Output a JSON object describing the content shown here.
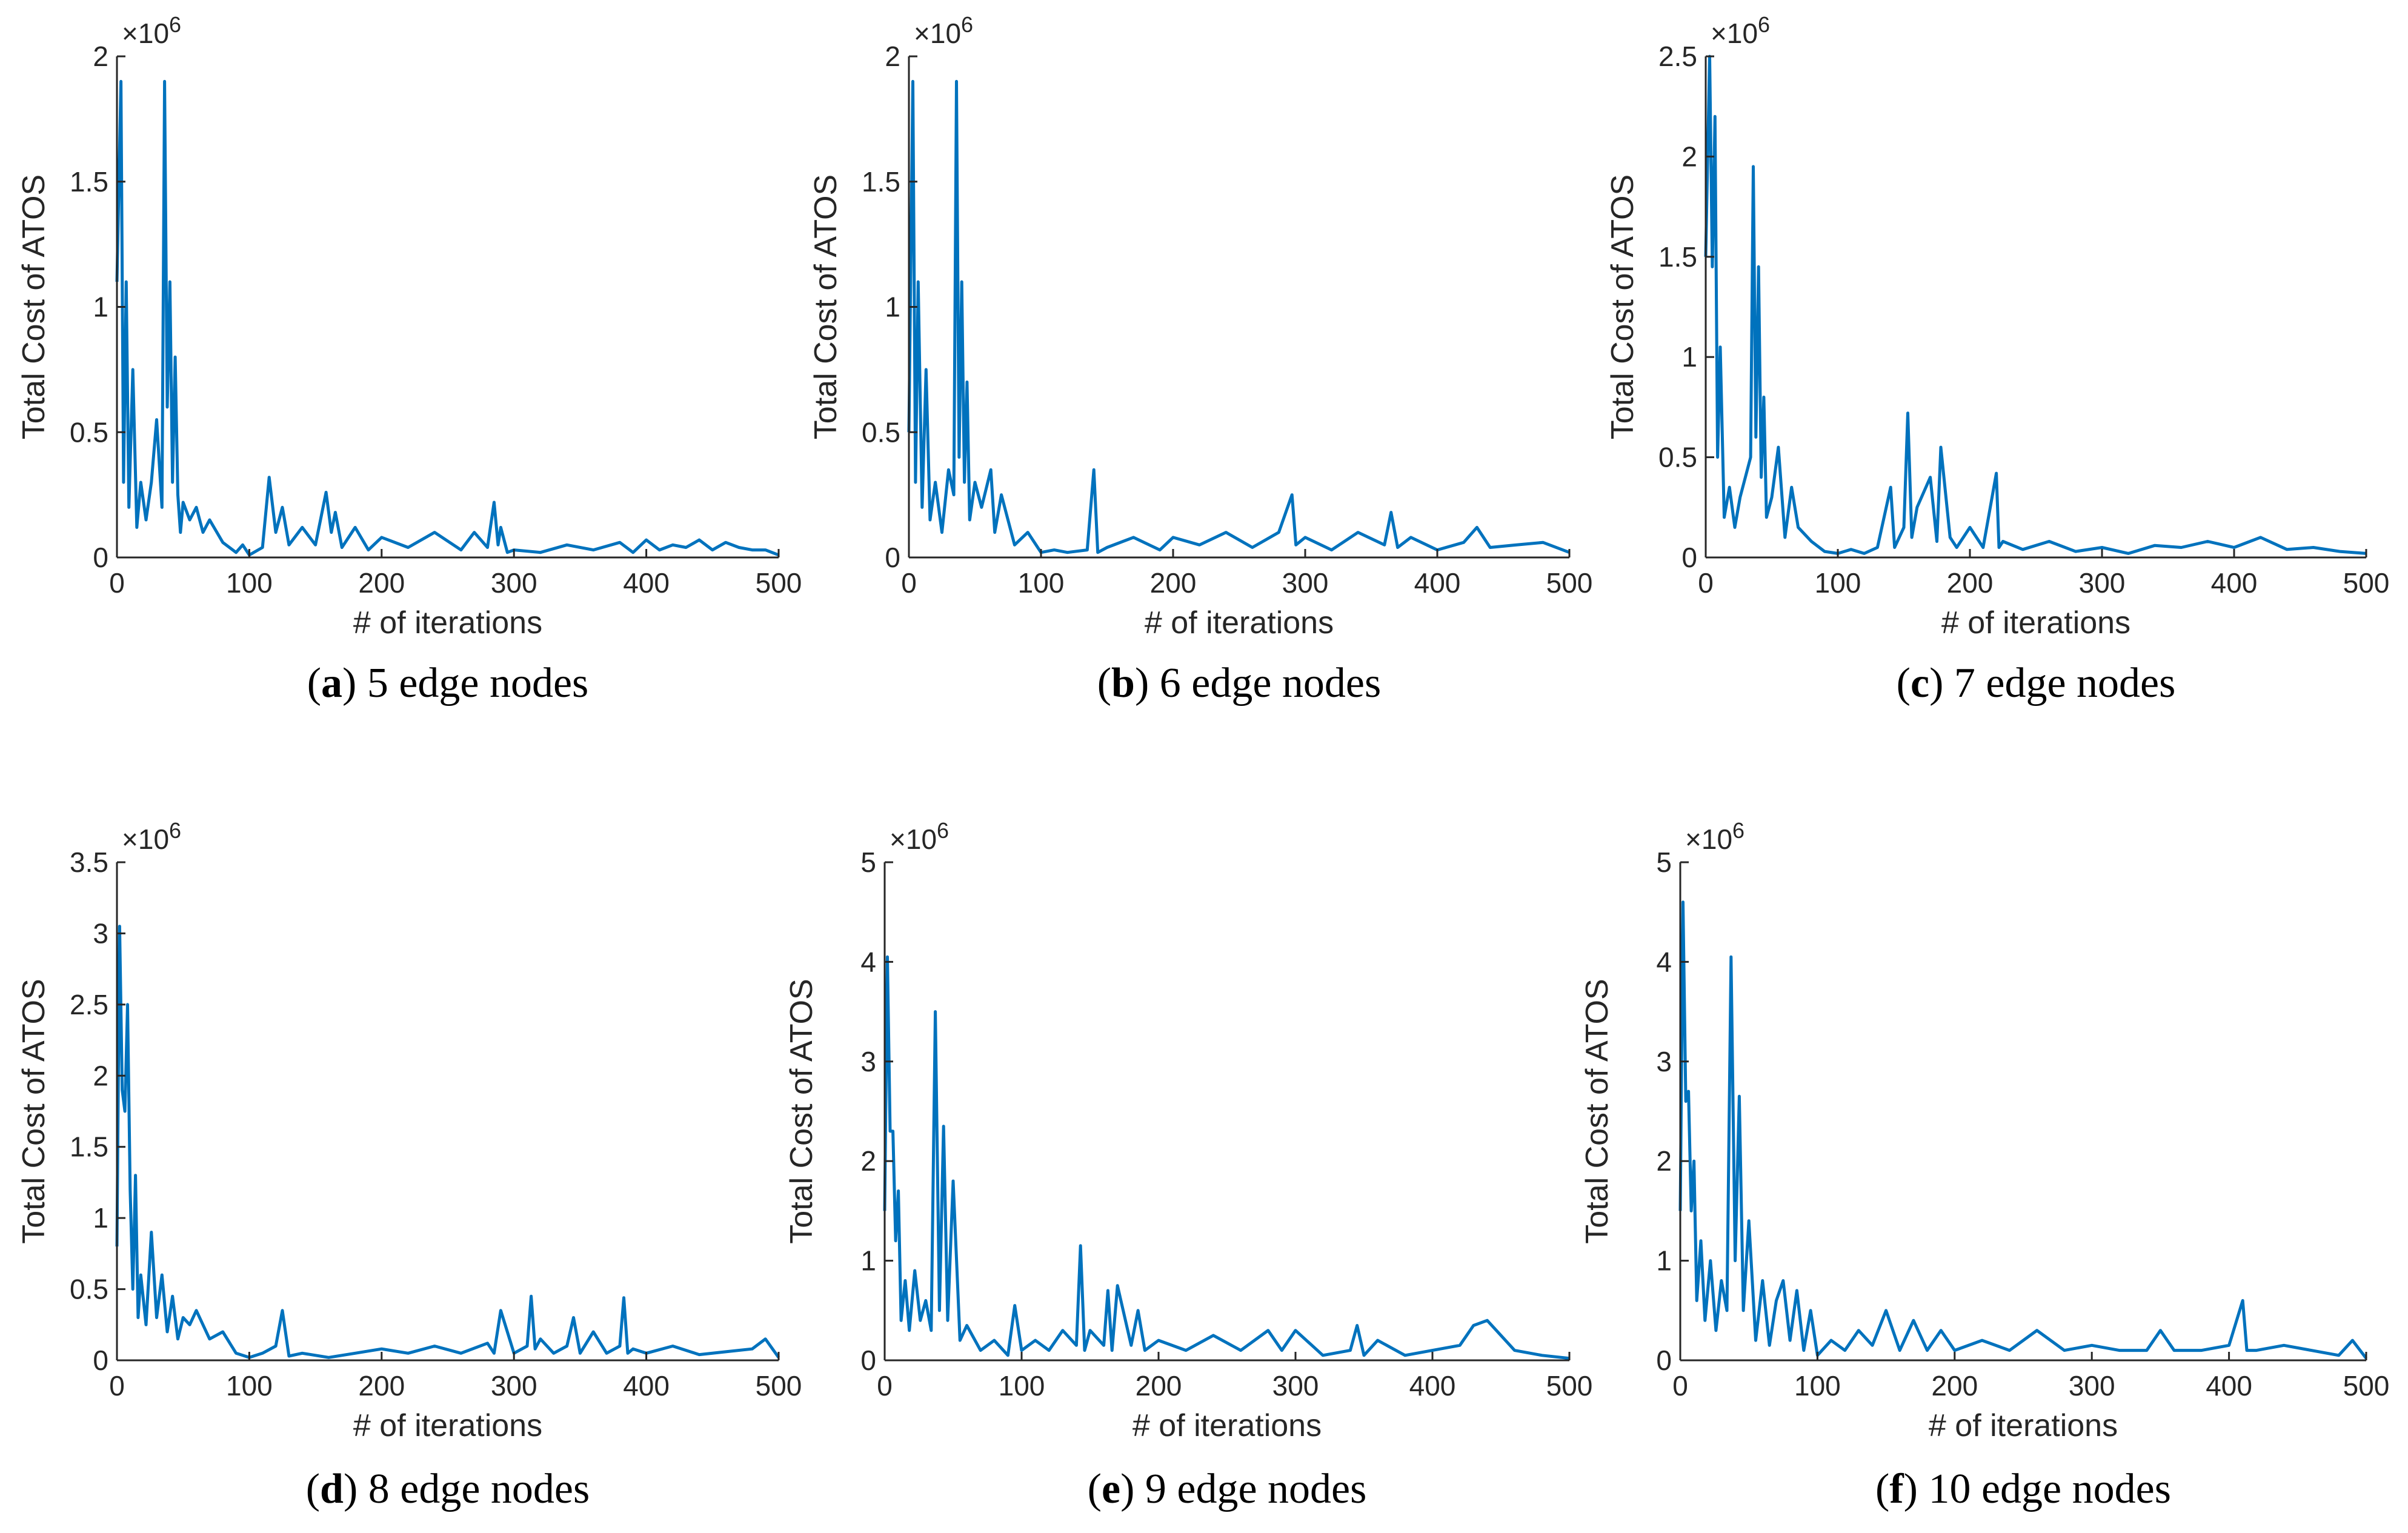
{
  "figure": {
    "series_color": "#0072BD",
    "x_axis_label": "# of iterations",
    "y_axis_label": "Total Cost of ATOS",
    "multiplier_label": "×10^6"
  },
  "chart_data": [
    {
      "type": "line",
      "caption": {
        "letter": "a",
        "text": " 5 edge nodes",
        "open": "(",
        "close": ")"
      },
      "xlabel": "# of iterations",
      "ylabel": "Total Cost of ATOS",
      "xlim": [
        0,
        500
      ],
      "ylim": [
        0,
        2
      ],
      "xticks": [
        0,
        100,
        200,
        300,
        400,
        500
      ],
      "yticks": [
        0,
        0.5,
        1,
        1.5,
        2
      ],
      "ytick_labels": [
        "0",
        "0.5",
        "1",
        "1.5",
        "2"
      ],
      "multiplier": "×10^6",
      "series": [
        {
          "name": "cost",
          "x": [
            0,
            3,
            5,
            7,
            9,
            12,
            15,
            18,
            22,
            26,
            30,
            34,
            36,
            38,
            40,
            42,
            44,
            46,
            48,
            50,
            55,
            60,
            65,
            70,
            80,
            90,
            95,
            100,
            110,
            115,
            120,
            125,
            130,
            140,
            150,
            158,
            162,
            165,
            170,
            180,
            190,
            200,
            220,
            240,
            260,
            270,
            280,
            285,
            288,
            290,
            295,
            300,
            320,
            340,
            360,
            380,
            390,
            400,
            410,
            420,
            430,
            440,
            450,
            460,
            470,
            480,
            490,
            500
          ],
          "y": [
            1.1,
            1.9,
            0.3,
            1.1,
            0.2,
            0.75,
            0.12,
            0.3,
            0.15,
            0.3,
            0.55,
            0.2,
            1.9,
            0.6,
            1.1,
            0.3,
            0.8,
            0.25,
            0.1,
            0.22,
            0.15,
            0.2,
            0.1,
            0.15,
            0.06,
            0.02,
            0.05,
            0.01,
            0.04,
            0.32,
            0.1,
            0.2,
            0.05,
            0.12,
            0.05,
            0.26,
            0.1,
            0.18,
            0.04,
            0.12,
            0.03,
            0.08,
            0.04,
            0.1,
            0.03,
            0.1,
            0.04,
            0.22,
            0.05,
            0.12,
            0.02,
            0.03,
            0.02,
            0.05,
            0.03,
            0.06,
            0.02,
            0.07,
            0.03,
            0.05,
            0.04,
            0.07,
            0.03,
            0.06,
            0.04,
            0.03,
            0.03,
            0.01
          ]
        }
      ]
    },
    {
      "type": "line",
      "caption": {
        "letter": "b",
        "text": " 6 edge nodes",
        "open": "(",
        "close": ")"
      },
      "xlabel": "# of iterations",
      "ylabel": "Total Cost of ATOS",
      "xlim": [
        0,
        500
      ],
      "ylim": [
        0,
        2
      ],
      "xticks": [
        0,
        100,
        200,
        300,
        400,
        500
      ],
      "yticks": [
        0,
        0.5,
        1,
        1.5,
        2
      ],
      "ytick_labels": [
        "0",
        "0.5",
        "1",
        "1.5",
        "2"
      ],
      "multiplier": "×10^6",
      "series": [
        {
          "name": "cost",
          "x": [
            0,
            3,
            5,
            7,
            10,
            13,
            16,
            20,
            25,
            30,
            34,
            36,
            38,
            40,
            42,
            44,
            46,
            50,
            55,
            62,
            65,
            70,
            80,
            90,
            100,
            110,
            120,
            135,
            140,
            143,
            150,
            170,
            190,
            200,
            220,
            240,
            260,
            280,
            290,
            293,
            300,
            320,
            340,
            360,
            365,
            370,
            380,
            400,
            420,
            430,
            440,
            460,
            480,
            500
          ],
          "y": [
            0.5,
            1.9,
            0.3,
            1.1,
            0.2,
            0.75,
            0.15,
            0.3,
            0.1,
            0.35,
            0.25,
            1.9,
            0.4,
            1.1,
            0.3,
            0.7,
            0.15,
            0.3,
            0.2,
            0.35,
            0.1,
            0.25,
            0.05,
            0.1,
            0.02,
            0.03,
            0.02,
            0.03,
            0.35,
            0.02,
            0.04,
            0.08,
            0.03,
            0.08,
            0.05,
            0.1,
            0.04,
            0.1,
            0.25,
            0.05,
            0.08,
            0.03,
            0.1,
            0.05,
            0.18,
            0.04,
            0.08,
            0.03,
            0.06,
            0.12,
            0.04,
            0.05,
            0.06,
            0.02
          ]
        }
      ]
    },
    {
      "type": "line",
      "caption": {
        "letter": "c",
        "text": " 7 edge nodes",
        "open": "(",
        "close": ")"
      },
      "xlabel": "# of iterations",
      "ylabel": "Total Cost of ATOS",
      "xlim": [
        0,
        500
      ],
      "ylim": [
        0,
        2.5
      ],
      "xticks": [
        0,
        100,
        200,
        300,
        400,
        500
      ],
      "yticks": [
        0,
        0.5,
        1,
        1.5,
        2,
        2.5
      ],
      "ytick_labels": [
        "0",
        "0.5",
        "1",
        "1.5",
        "2",
        "2.5"
      ],
      "multiplier": "×10^6",
      "series": [
        {
          "name": "cost",
          "x": [
            0,
            3,
            5,
            7,
            9,
            11,
            14,
            18,
            22,
            26,
            30,
            34,
            36,
            38,
            40,
            42,
            44,
            46,
            50,
            55,
            60,
            65,
            70,
            80,
            90,
            100,
            110,
            120,
            130,
            140,
            143,
            150,
            153,
            156,
            160,
            170,
            175,
            178,
            185,
            190,
            200,
            210,
            220,
            222,
            225,
            240,
            260,
            280,
            300,
            320,
            340,
            360,
            380,
            400,
            420,
            440,
            460,
            480,
            500
          ],
          "y": [
            1.5,
            2.5,
            1.45,
            2.2,
            0.5,
            1.05,
            0.2,
            0.35,
            0.15,
            0.3,
            0.4,
            0.5,
            1.95,
            0.6,
            1.45,
            0.4,
            0.8,
            0.2,
            0.3,
            0.55,
            0.1,
            0.35,
            0.15,
            0.08,
            0.03,
            0.02,
            0.04,
            0.02,
            0.05,
            0.35,
            0.05,
            0.15,
            0.72,
            0.1,
            0.25,
            0.4,
            0.08,
            0.55,
            0.1,
            0.05,
            0.15,
            0.05,
            0.42,
            0.05,
            0.08,
            0.04,
            0.08,
            0.03,
            0.05,
            0.02,
            0.06,
            0.05,
            0.08,
            0.05,
            0.1,
            0.04,
            0.05,
            0.03,
            0.02
          ]
        }
      ]
    },
    {
      "type": "line",
      "caption": {
        "letter": "d",
        "text": " 8 edge nodes",
        "open": "(",
        "close": ")"
      },
      "xlabel": "# of iterations",
      "ylabel": "Total Cost of ATOS",
      "xlim": [
        0,
        500
      ],
      "ylim": [
        0,
        3.5
      ],
      "xticks": [
        0,
        100,
        200,
        300,
        400,
        500
      ],
      "yticks": [
        0,
        0.5,
        1,
        1.5,
        2,
        2.5,
        3,
        3.5
      ],
      "ytick_labels": [
        "0",
        "0.5",
        "1",
        "1.5",
        "2",
        "2.5",
        "3",
        "3.5"
      ],
      "multiplier": "×10^6",
      "series": [
        {
          "name": "cost",
          "x": [
            0,
            2,
            4,
            6,
            8,
            10,
            12,
            14,
            16,
            18,
            22,
            26,
            30,
            34,
            38,
            42,
            46,
            50,
            55,
            60,
            70,
            80,
            90,
            100,
            110,
            120,
            125,
            130,
            140,
            160,
            180,
            200,
            220,
            240,
            260,
            280,
            285,
            290,
            300,
            310,
            313,
            316,
            320,
            330,
            340,
            345,
            350,
            360,
            370,
            380,
            383,
            386,
            390,
            400,
            420,
            440,
            460,
            480,
            490,
            500
          ],
          "y": [
            0.8,
            3.05,
            1.9,
            1.75,
            2.5,
            1.2,
            0.5,
            1.3,
            0.3,
            0.6,
            0.25,
            0.9,
            0.3,
            0.6,
            0.2,
            0.45,
            0.15,
            0.3,
            0.25,
            0.35,
            0.15,
            0.2,
            0.05,
            0.02,
            0.05,
            0.1,
            0.35,
            0.03,
            0.05,
            0.02,
            0.05,
            0.08,
            0.05,
            0.1,
            0.05,
            0.12,
            0.05,
            0.35,
            0.05,
            0.1,
            0.45,
            0.08,
            0.15,
            0.05,
            0.1,
            0.3,
            0.05,
            0.2,
            0.05,
            0.1,
            0.44,
            0.05,
            0.08,
            0.05,
            0.1,
            0.04,
            0.06,
            0.08,
            0.15,
            0.02
          ]
        }
      ]
    },
    {
      "type": "line",
      "caption": {
        "letter": "e",
        "text": " 9 edge nodes",
        "open": "(",
        "close": ")"
      },
      "xlabel": "# of iterations",
      "ylabel": "Total Cost of ATOS",
      "xlim": [
        0,
        500
      ],
      "ylim": [
        0,
        5
      ],
      "xticks": [
        0,
        100,
        200,
        300,
        400,
        500
      ],
      "yticks": [
        0,
        1,
        2,
        3,
        4,
        5
      ],
      "ytick_labels": [
        "0",
        "1",
        "2",
        "3",
        "4",
        "5"
      ],
      "multiplier": "×10^6",
      "series": [
        {
          "name": "cost",
          "x": [
            0,
            2,
            4,
            6,
            8,
            10,
            12,
            15,
            18,
            22,
            26,
            30,
            34,
            37,
            40,
            43,
            46,
            50,
            55,
            60,
            70,
            80,
            90,
            95,
            100,
            110,
            120,
            130,
            140,
            143,
            146,
            150,
            160,
            163,
            166,
            170,
            180,
            185,
            190,
            200,
            220,
            240,
            260,
            280,
            290,
            300,
            320,
            340,
            345,
            350,
            360,
            380,
            400,
            420,
            430,
            440,
            460,
            480,
            500
          ],
          "y": [
            1.5,
            4.05,
            2.3,
            2.3,
            1.2,
            1.7,
            0.4,
            0.8,
            0.3,
            0.9,
            0.4,
            0.6,
            0.3,
            3.5,
            0.5,
            2.35,
            0.4,
            1.8,
            0.2,
            0.35,
            0.1,
            0.2,
            0.05,
            0.55,
            0.1,
            0.2,
            0.1,
            0.3,
            0.15,
            1.15,
            0.1,
            0.3,
            0.15,
            0.7,
            0.1,
            0.75,
            0.15,
            0.5,
            0.1,
            0.2,
            0.1,
            0.25,
            0.1,
            0.3,
            0.1,
            0.3,
            0.05,
            0.1,
            0.35,
            0.05,
            0.2,
            0.05,
            0.1,
            0.15,
            0.35,
            0.4,
            0.1,
            0.05,
            0.02
          ]
        }
      ]
    },
    {
      "type": "line",
      "caption": {
        "letter": "f",
        "text": " 10 edge nodes",
        "open": "(",
        "close": ")"
      },
      "xlabel": "# of iterations",
      "ylabel": "Total Cost of ATOS",
      "xlim": [
        0,
        500
      ],
      "ylim": [
        0,
        5
      ],
      "xticks": [
        0,
        100,
        200,
        300,
        400,
        500
      ],
      "yticks": [
        0,
        1,
        2,
        3,
        4,
        5
      ],
      "ytick_labels": [
        "0",
        "1",
        "2",
        "3",
        "4",
        "5"
      ],
      "multiplier": "×10^6",
      "series": [
        {
          "name": "cost",
          "x": [
            0,
            2,
            4,
            6,
            8,
            10,
            12,
            15,
            18,
            22,
            26,
            30,
            34,
            37,
            40,
            43,
            46,
            50,
            55,
            60,
            65,
            70,
            75,
            80,
            85,
            90,
            95,
            100,
            110,
            120,
            130,
            140,
            150,
            160,
            170,
            180,
            190,
            200,
            220,
            240,
            260,
            280,
            300,
            320,
            340,
            350,
            360,
            380,
            400,
            410,
            413,
            420,
            440,
            460,
            480,
            490,
            500
          ],
          "y": [
            1.5,
            4.6,
            2.6,
            2.7,
            1.5,
            2.0,
            0.6,
            1.2,
            0.4,
            1.0,
            0.3,
            0.8,
            0.5,
            4.05,
            1.0,
            2.65,
            0.5,
            1.4,
            0.2,
            0.8,
            0.15,
            0.6,
            0.8,
            0.2,
            0.7,
            0.1,
            0.5,
            0.05,
            0.2,
            0.1,
            0.3,
            0.15,
            0.5,
            0.1,
            0.4,
            0.1,
            0.3,
            0.1,
            0.2,
            0.1,
            0.3,
            0.1,
            0.15,
            0.1,
            0.1,
            0.3,
            0.1,
            0.1,
            0.15,
            0.6,
            0.1,
            0.1,
            0.15,
            0.1,
            0.05,
            0.2,
            0.02
          ]
        }
      ]
    }
  ]
}
